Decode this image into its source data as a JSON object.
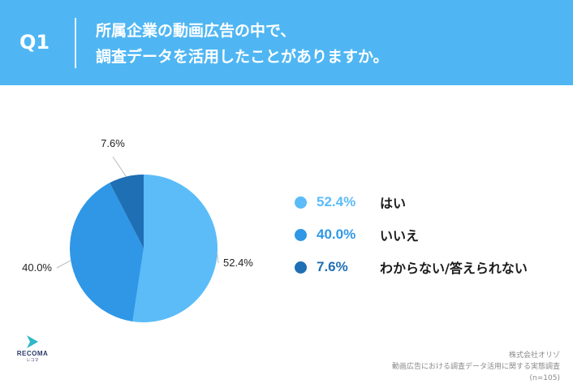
{
  "header": {
    "q_label": "Q1",
    "question_line1": "所属企業の動画広告の中で、",
    "question_line2": "調査データを活用したことがありますか。",
    "bg_color": "#4fb6f3"
  },
  "chart_data": {
    "type": "pie",
    "slices": [
      {
        "label": "はい",
        "value": 52.4,
        "value_text": "52.4%",
        "color": "#5bbcf8"
      },
      {
        "label": "いいえ",
        "value": 40.0,
        "value_text": "40.0%",
        "color": "#2f97e6"
      },
      {
        "label": "わからない/答えられない",
        "value": 7.6,
        "value_text": "7.6%",
        "color": "#1f6fb4"
      }
    ],
    "start": "12 o'clock",
    "direction": "clockwise",
    "legend_position": "right"
  },
  "logo": {
    "name": "RECOMA",
    "sub": "レコマ"
  },
  "source": {
    "line1": "株式会社オリゾ",
    "line2": "動画広告における調査データ活用に関する実態調査",
    "line3": "(n=105)"
  }
}
